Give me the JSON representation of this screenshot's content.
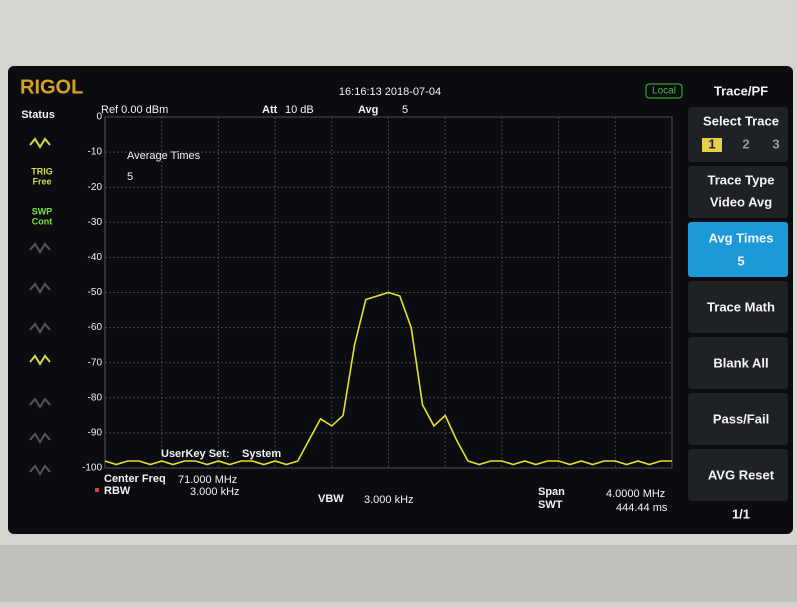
{
  "screen": {
    "brand": "RIGOL",
    "datetime": "16:16:13 2018-07-04",
    "mode": "Local",
    "status": {
      "title": "Status",
      "trig": "TRIG",
      "trig_value": "Free",
      "swp": "SWP",
      "swp_value": "Cont"
    },
    "top": {
      "ref": "Ref 0.00 dBm",
      "att_label": "Att",
      "att_value": "10 dB",
      "avg_label": "Avg",
      "avg_value": "5"
    },
    "graph": {
      "annotation": "Average Times",
      "annotation_value": "5",
      "userkey": "UserKey Set:",
      "userkey_value": "System",
      "ylim": [
        -100,
        0
      ],
      "yticks": [
        0,
        -10,
        -20,
        -30,
        -40,
        -50,
        -60,
        -70,
        -80,
        -90,
        -100
      ],
      "trace": {
        "color": "#e6e02a",
        "values": [
          -98,
          -99,
          -98,
          -98,
          -99,
          -98,
          -99,
          -98,
          -98,
          -99,
          -98,
          -99,
          -98,
          -98,
          -99,
          -98,
          -99,
          -98,
          -92,
          -86,
          -88,
          -85,
          -65,
          -52,
          -51,
          -50,
          -51,
          -60,
          -82,
          -88,
          -85,
          -92,
          -98,
          -99,
          -98,
          -98,
          -99,
          -98,
          -99,
          -98,
          -98,
          -99,
          -98,
          -99,
          -98,
          -98,
          -99,
          -98,
          -99,
          -98,
          -98
        ]
      }
    },
    "bottom": {
      "center_label": "Center Freq",
      "center_value": "71.000 MHz",
      "rbw_label": "RBW",
      "rbw_value": "3.000 kHz",
      "vbw_label": "VBW",
      "vbw_value": "3.000 kHz",
      "span_label": "Span",
      "span_value": "4.0000 MHz",
      "swt_label": "SWT",
      "swt_value": "444.44 ms"
    },
    "menu": {
      "title": "Trace/PF",
      "select": "Select Trace",
      "traces": [
        "1",
        "2",
        "3"
      ],
      "trace_type": "Trace Type",
      "trace_type_value": "Video Avg",
      "avg_times": "Avg Times",
      "avg_times_value": "5",
      "trace_math": "Trace Math",
      "blank_all": "Blank All",
      "pass_fail": "Pass/Fail",
      "avg_reset": "AVG Reset",
      "page": "1/1"
    }
  }
}
